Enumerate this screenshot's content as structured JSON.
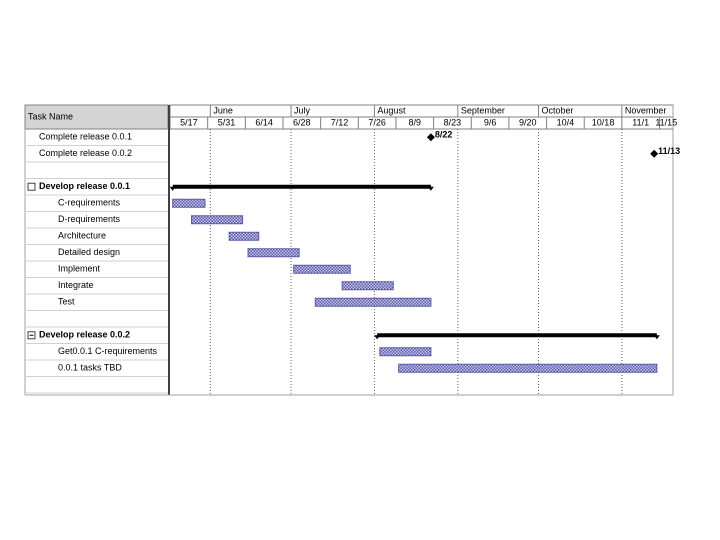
{
  "chart_data": {
    "type": "gantt",
    "column_title": "Task Name",
    "xlim": [
      "5/17",
      "11/20"
    ],
    "months": [
      {
        "name": "June",
        "start": "6/1"
      },
      {
        "name": "July",
        "start": "7/1"
      },
      {
        "name": "August",
        "start": "8/1"
      },
      {
        "name": "September",
        "start": "9/1"
      },
      {
        "name": "October",
        "start": "10/1"
      },
      {
        "name": "November",
        "start": "11/1"
      }
    ],
    "xticks": [
      "5/17",
      "5/31",
      "6/14",
      "6/28",
      "7/12",
      "7/26",
      "8/9",
      "8/23",
      "9/6",
      "9/20",
      "10/4",
      "10/18",
      "11/1",
      "11/15"
    ],
    "bar_color": "#5a5aa8",
    "tasks": [
      {
        "name": "Complete release 0.0.1",
        "date": "8/22"
      },
      {
        "name": "Complete release 0.0.2",
        "date": "11/13"
      },
      null,
      {
        "name": "Develop release 0.0.1",
        "summary": true,
        "start": "5/18",
        "end": "8/22"
      },
      {
        "name": "C-requirements",
        "start": "5/18",
        "end": "5/30"
      },
      {
        "name": "D-requirements",
        "start": "5/25",
        "end": "6/13"
      },
      {
        "name": "Architecture",
        "start": "6/8",
        "end": "6/19"
      },
      {
        "name": "Detailed design",
        "start": "6/15",
        "end": "7/4"
      },
      {
        "name": "Implement",
        "start": "7/2",
        "end": "7/23"
      },
      {
        "name": "Integrate",
        "start": "7/20",
        "end": "8/8"
      },
      {
        "name": "Test",
        "start": "7/10",
        "end": "8/22"
      },
      null,
      {
        "name": "Develop release 0.0.2",
        "summary": true,
        "start": "8/2",
        "end": "11/14"
      },
      {
        "name": "Get0.0.1 C-requirements",
        "start": "8/3",
        "end": "8/22"
      },
      {
        "name": "0.0.1 tasks TBD",
        "start": "8/10",
        "end": "11/14"
      },
      null
    ]
  }
}
